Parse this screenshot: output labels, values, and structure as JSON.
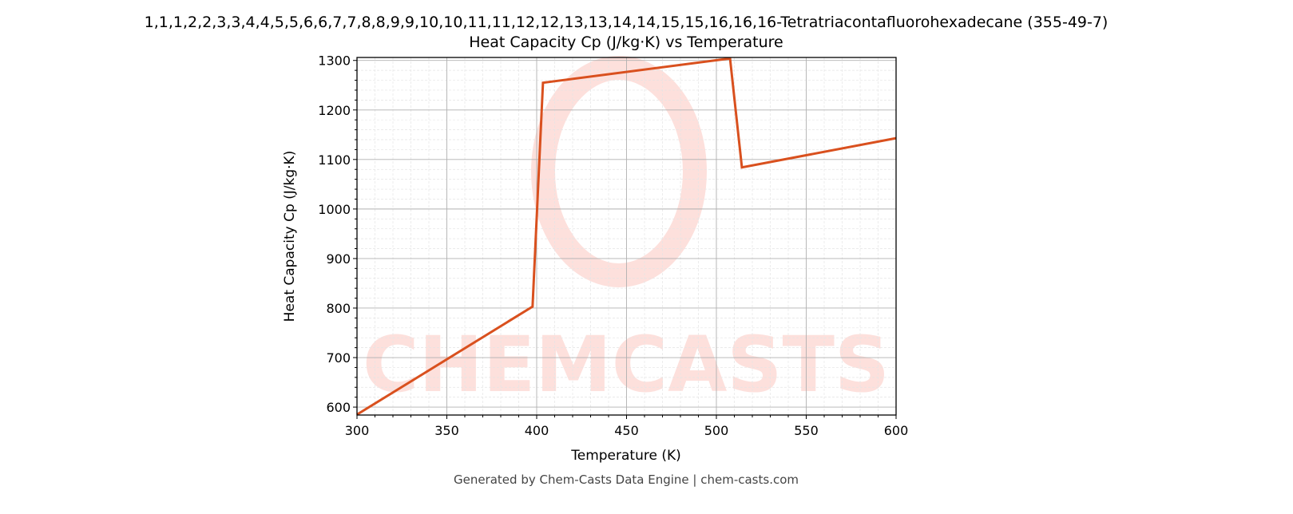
{
  "chart_data": {
    "type": "line",
    "title": "1,1,1,2,2,3,3,4,4,5,5,6,6,7,7,8,8,9,9,10,10,11,11,12,12,13,13,14,14,15,15,16,16,16-Tetratriacontafluorohexadecane (355-49-7)",
    "subtitle": "Heat Capacity Cp (J/kg·K) vs Temperature",
    "xlabel": "Temperature (K)",
    "ylabel": "Heat Capacity Cp (J/kg·K)",
    "xlim": [
      300,
      600
    ],
    "ylim": [
      584,
      1306
    ],
    "xticks": [
      300,
      350,
      400,
      450,
      500,
      550,
      600
    ],
    "yticks": [
      600,
      700,
      800,
      900,
      1000,
      1100,
      1200,
      1300
    ],
    "grid": true,
    "series": [
      {
        "name": "Cp",
        "color": "#d9501e",
        "x": [
          300,
          397.7,
          403.5,
          507.6,
          514.2,
          600
        ],
        "y": [
          585,
          803,
          1255,
          1304,
          1084,
          1143
        ]
      }
    ]
  },
  "footer": "Generated by Chem-Casts Data Engine | chem-casts.com",
  "watermark": "CHEMCASTS"
}
